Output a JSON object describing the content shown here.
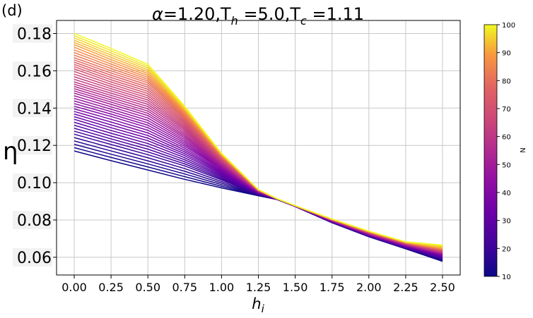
{
  "panel_label": "(d)",
  "colorbar": {
    "label": "N",
    "ticks": [
      10,
      20,
      30,
      40,
      50,
      60,
      70,
      80,
      90,
      100
    ],
    "range": [
      10,
      100
    ],
    "colormap": "plasma"
  },
  "chart_data": {
    "type": "line",
    "title": {
      "alpha_sym": "α",
      "alpha_val": "=1.20,",
      "th_sym": "T",
      "th_sub": "h",
      "th_val": " =5.0,",
      "tc_sym": "T",
      "tc_sub": "c",
      "tc_val": " =1.11"
    },
    "xlabel": {
      "main": "h",
      "sub": "i"
    },
    "ylabel": "η",
    "xlim": [
      -0.12,
      2.62
    ],
    "ylim": [
      0.0505,
      0.187
    ],
    "grid": true,
    "xticks": [
      0.0,
      0.25,
      0.5,
      0.75,
      1.0,
      1.25,
      1.5,
      1.75,
      2.0,
      2.25,
      2.5
    ],
    "xtick_labels": [
      "0.00",
      "0.25",
      "0.50",
      "0.75",
      "1.00",
      "1.25",
      "1.50",
      "1.75",
      "2.00",
      "2.25",
      "2.50"
    ],
    "yticks": [
      0.06,
      0.08,
      0.1,
      0.12,
      0.14,
      0.16,
      0.18
    ],
    "ytick_labels": [
      "0.06",
      "0.08",
      "0.10",
      "0.12",
      "0.14",
      "0.16",
      "0.18"
    ],
    "x": [
      0.0,
      0.25,
      0.5,
      0.75,
      1.0,
      1.25,
      1.375,
      1.5,
      1.75,
      2.0,
      2.25,
      2.5
    ],
    "series": [
      {
        "N": 10,
        "values": [
          0.117,
          0.1118,
          0.1068,
          0.1018,
          0.0972,
          0.093,
          0.091,
          0.0872,
          0.0785,
          0.071,
          0.0645,
          0.0578
        ]
      },
      {
        "N": 20,
        "values": [
          0.126,
          0.1205,
          0.115,
          0.109,
          0.1015,
          0.0938,
          0.0911,
          0.0873,
          0.0788,
          0.0713,
          0.065,
          0.0592
        ]
      },
      {
        "N": 30,
        "values": [
          0.134,
          0.128,
          0.1225,
          0.1145,
          0.1045,
          0.0944,
          0.0912,
          0.0874,
          0.0791,
          0.0717,
          0.0656,
          0.0604
        ]
      },
      {
        "N": 40,
        "values": [
          0.141,
          0.1355,
          0.1295,
          0.1195,
          0.1072,
          0.0948,
          0.0912,
          0.0874,
          0.0793,
          0.0721,
          0.0661,
          0.0613
        ]
      },
      {
        "N": 50,
        "values": [
          0.148,
          0.142,
          0.136,
          0.124,
          0.1093,
          0.0952,
          0.0913,
          0.0875,
          0.0796,
          0.0725,
          0.0666,
          0.062
        ]
      },
      {
        "N": 60,
        "values": [
          0.154,
          0.148,
          0.142,
          0.1282,
          0.1112,
          0.0955,
          0.0913,
          0.0875,
          0.0798,
          0.0729,
          0.067,
          0.0627
        ]
      },
      {
        "N": 70,
        "values": [
          0.161,
          0.154,
          0.1478,
          0.132,
          0.1128,
          0.0958,
          0.0914,
          0.0876,
          0.08,
          0.0732,
          0.0674,
          0.0634
        ]
      },
      {
        "N": 80,
        "values": [
          0.167,
          0.16,
          0.1535,
          0.1355,
          0.114,
          0.096,
          0.0914,
          0.0876,
          0.0802,
          0.0735,
          0.0677,
          0.0641
        ]
      },
      {
        "N": 90,
        "values": [
          0.174,
          0.166,
          0.1585,
          0.1385,
          0.115,
          0.0962,
          0.0914,
          0.0876,
          0.0804,
          0.0738,
          0.068,
          0.0648
        ]
      },
      {
        "N": 100,
        "values": [
          0.18,
          0.172,
          0.1635,
          0.141,
          0.1158,
          0.0963,
          0.0915,
          0.0877,
          0.0805,
          0.074,
          0.0683,
          0.0665
        ]
      }
    ]
  }
}
